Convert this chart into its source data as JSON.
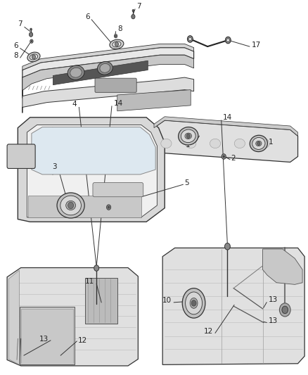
{
  "bg_color": "#ffffff",
  "line_color": "#333333",
  "text_color": "#222222",
  "label_fontsize": 7.5
}
